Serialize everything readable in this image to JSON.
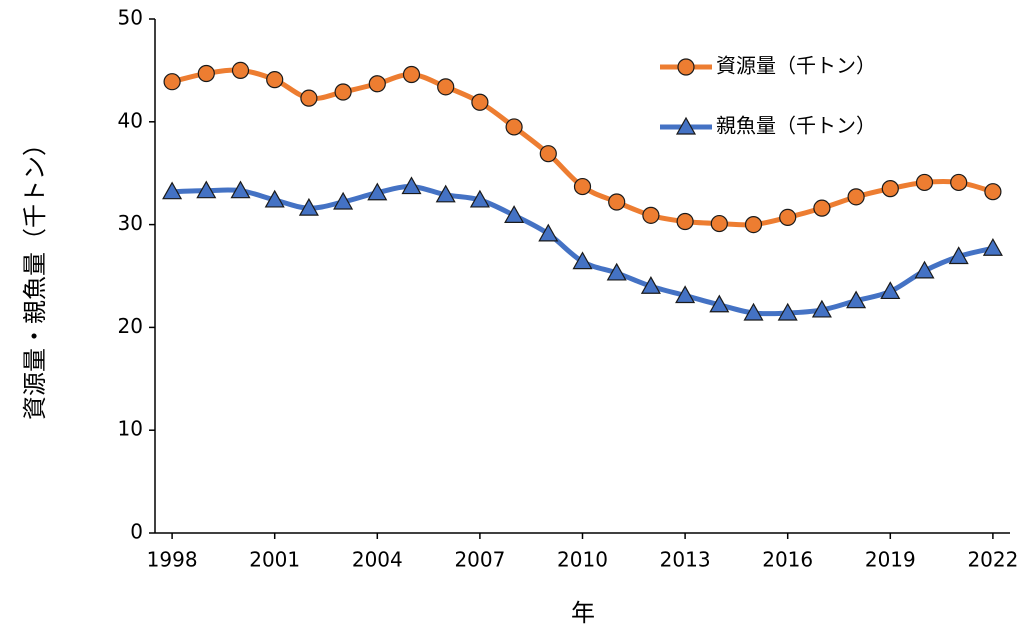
{
  "chart_data": {
    "type": "line",
    "x": [
      1998,
      1999,
      2000,
      2001,
      2002,
      2003,
      2004,
      2005,
      2006,
      2007,
      2008,
      2009,
      2010,
      2011,
      2012,
      2013,
      2014,
      2015,
      2016,
      2017,
      2018,
      2019,
      2020,
      2021,
      2022
    ],
    "series": [
      {
        "name": "資源量（千トン）",
        "color": "#ED7D31",
        "marker": "circle",
        "values": [
          43.9,
          44.7,
          45.0,
          44.1,
          42.3,
          42.9,
          43.7,
          44.6,
          43.4,
          41.9,
          39.5,
          36.9,
          33.7,
          32.2,
          30.9,
          30.3,
          30.1,
          30.0,
          30.7,
          31.6,
          32.7,
          33.5,
          34.1,
          34.1,
          33.2
        ]
      },
      {
        "name": "親魚量（千トン）",
        "color": "#4472C4",
        "marker": "triangle",
        "values": [
          33.2,
          33.3,
          33.3,
          32.4,
          31.6,
          32.2,
          33.1,
          33.7,
          32.9,
          32.4,
          30.9,
          29.1,
          26.4,
          25.3,
          24.0,
          23.1,
          22.2,
          21.4,
          21.4,
          21.7,
          22.6,
          23.5,
          25.5,
          26.9,
          27.7
        ]
      }
    ],
    "x_label": "年",
    "y_label": "資源量・親魚量（千トン）",
    "xlim": [
      1997.5,
      2022.5
    ],
    "xticks": [
      1998,
      2001,
      2004,
      2007,
      2010,
      2013,
      2016,
      2019,
      2022
    ],
    "ylim": [
      0,
      50
    ],
    "yticks": [
      0,
      10,
      20,
      30,
      40,
      50
    ],
    "grid": false,
    "legend": "upper right"
  }
}
